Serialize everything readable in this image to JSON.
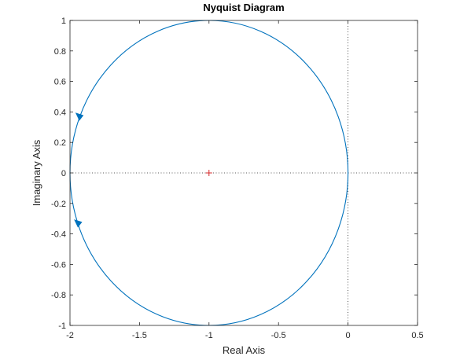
{
  "chart_data": {
    "type": "line",
    "title": "Nyquist Diagram",
    "xlabel": "Real Axis",
    "ylabel": "Imaginary Axis",
    "xlim": [
      -2,
      0.5
    ],
    "ylim": [
      -1,
      1
    ],
    "xticks": [
      -2,
      -1.5,
      -1,
      -0.5,
      0,
      0.5
    ],
    "xtick_labels": [
      "-2",
      "-1.5",
      "-1",
      "-0.5",
      "0",
      "0.5"
    ],
    "yticks": [
      -1,
      -0.8,
      -0.6,
      -0.4,
      -0.2,
      0,
      0.2,
      0.4,
      0.6,
      0.8,
      1
    ],
    "ytick_labels": [
      "-1",
      "-0.8",
      "-0.6",
      "-0.4",
      "-0.2",
      "0",
      "0.2",
      "0.4",
      "0.6",
      "0.8",
      "1"
    ],
    "grid": false,
    "curve": {
      "shape": "circle",
      "center": [
        -1,
        0
      ],
      "radius": 1
    },
    "arrows": [
      {
        "x": -1.93,
        "y": 0.37,
        "direction": "down"
      },
      {
        "x": -1.94,
        "y": -0.33,
        "direction": "down"
      }
    ],
    "critical_point": {
      "x": -1,
      "y": 0,
      "marker": "+"
    },
    "zero_lines": {
      "x": 0,
      "y": 0,
      "style": "dotted"
    },
    "colors": {
      "curve": "#0072BD",
      "critical_point": "#D62728",
      "axes": "#262626",
      "zero_lines": "#262626"
    }
  }
}
